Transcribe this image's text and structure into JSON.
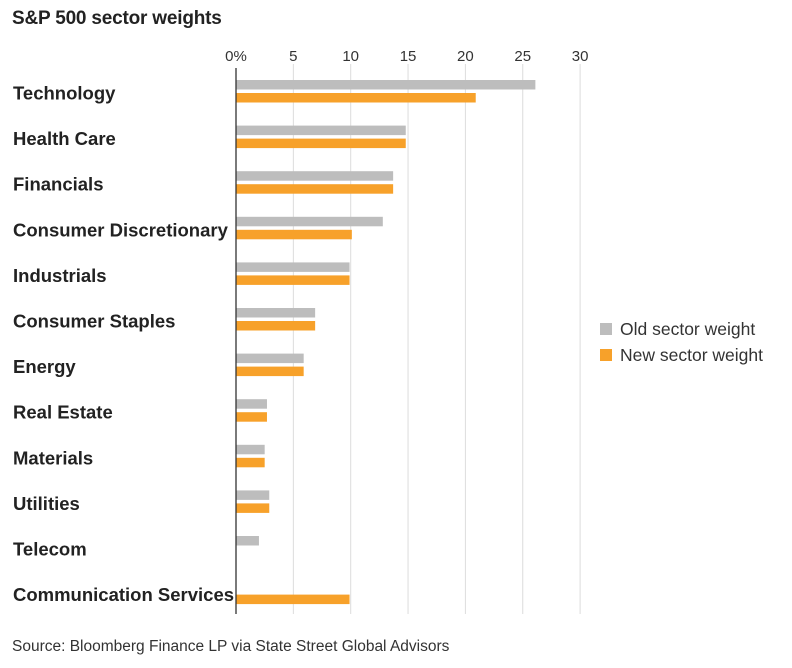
{
  "title": "S&P 500 sector weights",
  "source": "Source: Bloomberg Finance LP via State Street Global Advisors",
  "colors": {
    "old": "#bdbdbd",
    "new": "#f7a12a",
    "grid": "#dcdcdc",
    "axis": "#333333"
  },
  "chart_data": {
    "type": "bar",
    "orientation": "horizontal",
    "title": "S&P 500 sector weights",
    "categories": [
      "Technology",
      "Health Care",
      "Financials",
      "Consumer Discretionary",
      "Industrials",
      "Consumer Staples",
      "Energy",
      "Real Estate",
      "Materials",
      "Utilities",
      "Telecom",
      "Communication Services"
    ],
    "series": [
      {
        "name": "Old sector weight",
        "values": [
          26.1,
          14.8,
          13.7,
          12.8,
          9.9,
          6.9,
          5.9,
          2.7,
          2.5,
          2.9,
          2.0,
          null
        ]
      },
      {
        "name": "New sector weight",
        "values": [
          20.9,
          14.8,
          13.7,
          10.1,
          9.9,
          6.9,
          5.9,
          2.7,
          2.5,
          2.9,
          null,
          9.9
        ]
      }
    ],
    "xlim": [
      0,
      30
    ],
    "ticks": [
      0,
      5,
      10,
      15,
      20,
      25,
      30
    ],
    "tick_labels": [
      "0%",
      "5",
      "10",
      "15",
      "20",
      "25",
      "30"
    ],
    "grid": true,
    "legend_position": "right"
  }
}
